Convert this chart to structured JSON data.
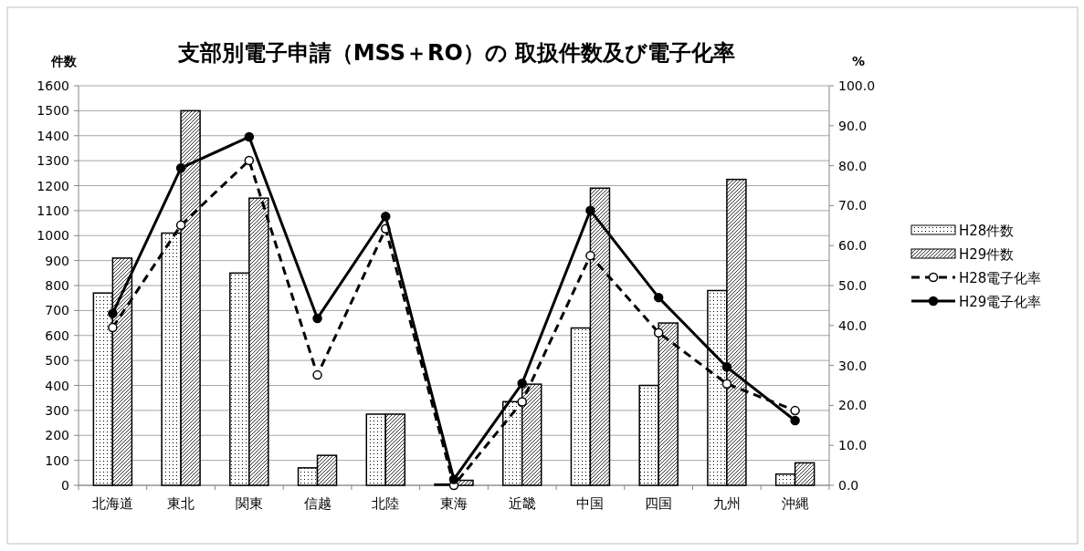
{
  "chart_data": {
    "type": "bar",
    "title": "支部別電子申請（MSS＋RO）の 取扱件数及び電子化率",
    "ylabel": "件数",
    "y2label": "%",
    "categories": [
      "北海道",
      "東北",
      "関東",
      "信越",
      "北陸",
      "東海",
      "近畿",
      "中国",
      "四国",
      "九州",
      "沖縄"
    ],
    "series": [
      {
        "name": "H28件数",
        "color": "#000000",
        "values": [
          770,
          1010,
          850,
          70,
          285,
          5,
          335,
          630,
          400,
          780,
          45
        ]
      },
      {
        "name": "H29件数",
        "color": "#000000",
        "values": [
          910,
          1500,
          1150,
          120,
          285,
          20,
          405,
          1190,
          650,
          1225,
          90
        ]
      },
      {
        "name": "H28電子化率",
        "type": "line",
        "axis": "y2",
        "color": "#000000",
        "line_style": "dashed",
        "marker": "circle",
        "values": [
          39.5,
          65.1,
          81.3,
          27.6,
          64.2,
          0.0,
          20.9,
          57.5,
          38.2,
          25.4,
          18.7
        ]
      },
      {
        "name": "H29電子化率",
        "type": "line",
        "axis": "y2",
        "color": "#000000",
        "line_style": "solid",
        "marker": "circle",
        "values": [
          43.0,
          79.4,
          87.2,
          41.8,
          67.3,
          1.5,
          25.5,
          68.8,
          47.0,
          29.6,
          16.2
        ]
      }
    ],
    "ylim": [
      0,
      1600
    ],
    "yticks": [
      0,
      100,
      200,
      300,
      400,
      500,
      600,
      700,
      800,
      900,
      1000,
      1100,
      1200,
      1300,
      1400,
      1500,
      1600
    ],
    "y2lim": [
      0,
      100
    ],
    "y2ticks": [
      {
        "value": 0,
        "label": "0.0"
      },
      {
        "value": 10,
        "label": "10.0"
      },
      {
        "value": 20,
        "label": "20.0"
      },
      {
        "value": 30,
        "label": "30.0"
      },
      {
        "value": 40,
        "label": "40.0"
      },
      {
        "value": 50,
        "label": "50.0"
      },
      {
        "value": 60,
        "label": "60.0"
      },
      {
        "value": 70,
        "label": "70.0"
      },
      {
        "value": 80,
        "label": "80.0"
      },
      {
        "value": 90,
        "label": "90.0"
      },
      {
        "value": 100,
        "label": "100.0"
      }
    ],
    "grid": "y",
    "legend": "right"
  }
}
